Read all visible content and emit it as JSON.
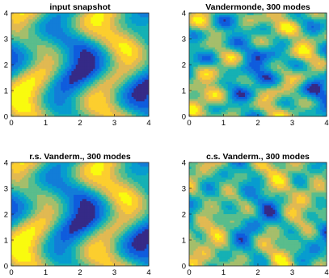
{
  "chart_data": [
    {
      "type": "contour",
      "title": "input snapshot",
      "x_ticks": [
        0,
        1,
        2,
        3,
        4
      ],
      "y_ticks": [
        0,
        1,
        2,
        3,
        4
      ],
      "xlim": [
        0,
        4
      ],
      "ylim": [
        0,
        4
      ],
      "colormap": "parula",
      "pattern": "smooth"
    },
    {
      "type": "contour",
      "title": "Vandermonde, 300 modes",
      "x_ticks": [
        0,
        1,
        2,
        3,
        4
      ],
      "y_ticks": [
        0,
        1,
        2,
        3,
        4
      ],
      "xlim": [
        0,
        4
      ],
      "ylim": [
        0,
        4
      ],
      "colormap": "parula",
      "pattern": "noisy"
    },
    {
      "type": "contour",
      "title": "r.s. Vanderm., 300 modes",
      "x_ticks": [
        0,
        1,
        2,
        3,
        4
      ],
      "y_ticks": [
        0,
        1,
        2,
        3,
        4
      ],
      "xlim": [
        0,
        4
      ],
      "ylim": [
        0,
        4
      ],
      "colormap": "parula",
      "pattern": "smooth"
    },
    {
      "type": "contour",
      "title": "c.s. Vanderm., 300 modes",
      "x_ticks": [
        0,
        1,
        2,
        3,
        4
      ],
      "y_ticks": [
        0,
        1,
        2,
        3,
        4
      ],
      "xlim": [
        0,
        4
      ],
      "ylim": [
        0,
        4
      ],
      "colormap": "parula",
      "pattern": "noisy2"
    }
  ]
}
